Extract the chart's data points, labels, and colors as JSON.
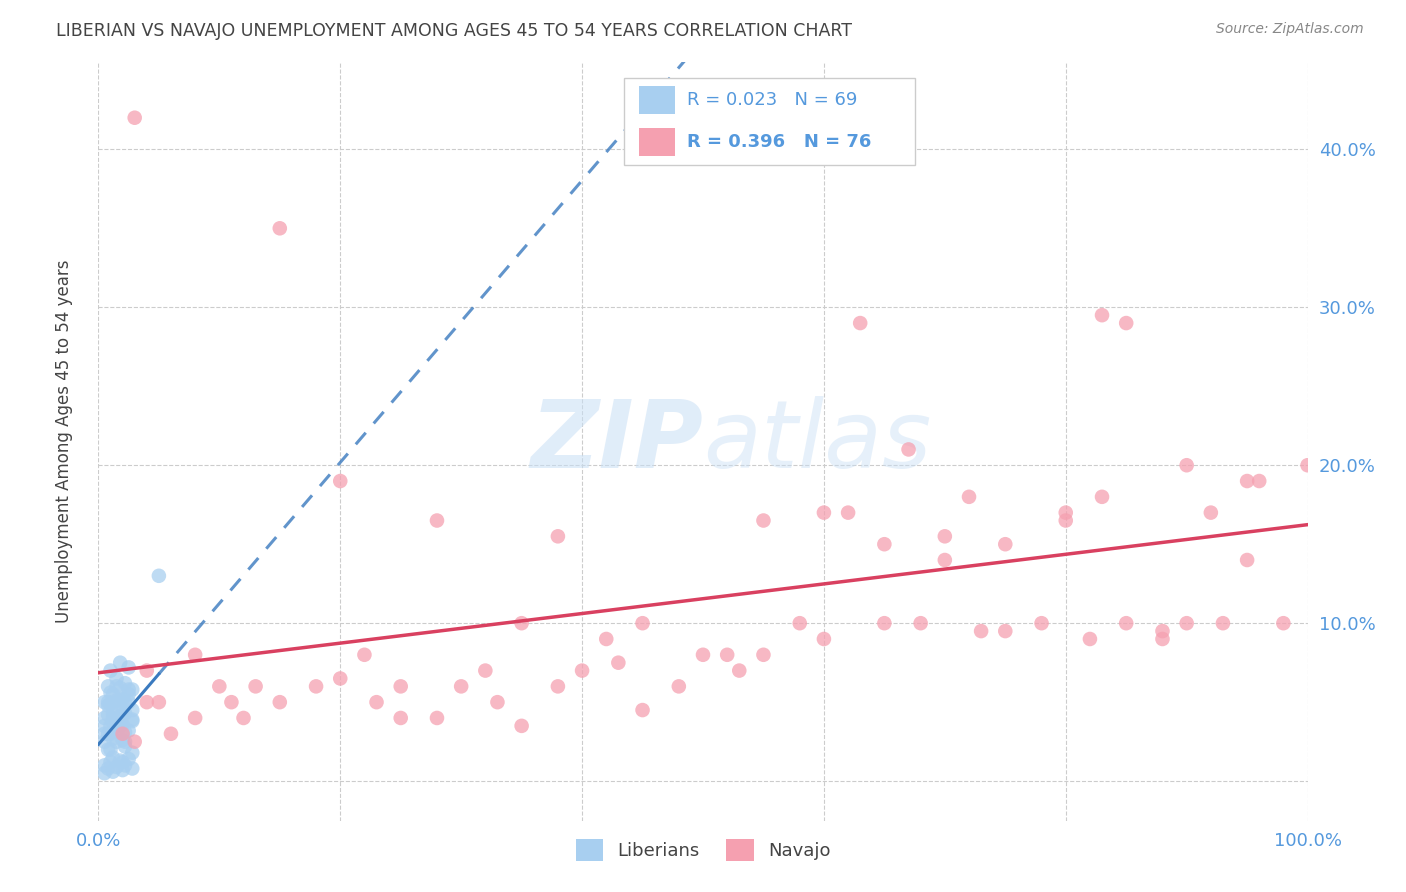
{
  "title": "LIBERIAN VS NAVAJO UNEMPLOYMENT AMONG AGES 45 TO 54 YEARS CORRELATION CHART",
  "source": "Source: ZipAtlas.com",
  "ylabel": "Unemployment Among Ages 45 to 54 years",
  "liberian_R": 0.023,
  "liberian_N": 69,
  "navajo_R": 0.396,
  "navajo_N": 76,
  "liberian_color": "#a8cff0",
  "navajo_color": "#f5a0b0",
  "trend_liberian_color": "#3a7abf",
  "trend_navajo_color": "#d94060",
  "background_color": "#ffffff",
  "grid_color": "#cccccc",
  "title_color": "#444444",
  "axis_label_color": "#5599dd",
  "xlim": [
    0.0,
    1.0
  ],
  "ylim": [
    -0.025,
    0.455
  ],
  "xticks": [
    0.0,
    0.2,
    0.4,
    0.6,
    0.8,
    1.0
  ],
  "xticklabels": [
    "0.0%",
    "",
    "",
    "",
    "",
    "100.0%"
  ],
  "yticks": [
    0.0,
    0.1,
    0.2,
    0.3,
    0.4
  ],
  "yticklabels_right": [
    "",
    "10.0%",
    "20.0%",
    "30.0%",
    "40.0%"
  ],
  "lib_x": [
    0.005,
    0.008,
    0.01,
    0.012,
    0.015,
    0.018,
    0.02,
    0.022,
    0.025,
    0.028,
    0.005,
    0.008,
    0.01,
    0.012,
    0.015,
    0.018,
    0.02,
    0.022,
    0.025,
    0.028,
    0.005,
    0.008,
    0.01,
    0.012,
    0.015,
    0.018,
    0.02,
    0.022,
    0.025,
    0.028,
    0.005,
    0.008,
    0.01,
    0.012,
    0.015,
    0.018,
    0.02,
    0.022,
    0.025,
    0.028,
    0.005,
    0.008,
    0.01,
    0.012,
    0.015,
    0.018,
    0.02,
    0.022,
    0.025,
    0.028,
    0.005,
    0.008,
    0.01,
    0.012,
    0.015,
    0.018,
    0.02,
    0.022,
    0.025,
    0.028,
    0.005,
    0.008,
    0.01,
    0.012,
    0.015,
    0.018,
    0.02,
    0.022,
    0.05
  ],
  "lib_y": [
    0.03,
    0.05,
    0.02,
    0.04,
    0.06,
    0.035,
    0.045,
    0.025,
    0.055,
    0.038,
    0.01,
    0.02,
    0.03,
    0.015,
    0.025,
    0.035,
    0.012,
    0.022,
    0.032,
    0.018,
    0.05,
    0.06,
    0.07,
    0.055,
    0.065,
    0.075,
    0.052,
    0.062,
    0.072,
    0.058,
    0.04,
    0.048,
    0.056,
    0.043,
    0.051,
    0.059,
    0.042,
    0.05,
    0.058,
    0.045,
    0.005,
    0.008,
    0.012,
    0.006,
    0.009,
    0.013,
    0.007,
    0.01,
    0.014,
    0.008,
    0.035,
    0.042,
    0.049,
    0.037,
    0.044,
    0.051,
    0.036,
    0.043,
    0.05,
    0.039,
    0.025,
    0.03,
    0.035,
    0.027,
    0.032,
    0.037,
    0.026,
    0.031,
    0.13
  ],
  "nav_x": [
    0.03,
    0.05,
    0.08,
    0.1,
    0.12,
    0.15,
    0.18,
    0.2,
    0.22,
    0.25,
    0.28,
    0.3,
    0.32,
    0.35,
    0.38,
    0.4,
    0.42,
    0.45,
    0.48,
    0.5,
    0.52,
    0.55,
    0.58,
    0.6,
    0.62,
    0.65,
    0.68,
    0.7,
    0.72,
    0.75,
    0.78,
    0.8,
    0.82,
    0.85,
    0.88,
    0.9,
    0.92,
    0.95,
    0.98,
    1.0,
    0.03,
    0.08,
    0.15,
    0.25,
    0.35,
    0.45,
    0.55,
    0.65,
    0.75,
    0.85,
    0.95,
    0.06,
    0.13,
    0.23,
    0.33,
    0.43,
    0.53,
    0.63,
    0.73,
    0.83,
    0.93,
    0.04,
    0.11,
    0.2,
    0.7,
    0.8,
    0.88,
    0.96,
    0.28,
    0.02,
    0.38,
    0.6,
    0.83,
    0.9,
    0.04,
    0.67
  ],
  "nav_y": [
    0.42,
    0.05,
    0.08,
    0.06,
    0.04,
    0.35,
    0.06,
    0.19,
    0.08,
    0.06,
    0.04,
    0.06,
    0.07,
    0.1,
    0.06,
    0.07,
    0.09,
    0.1,
    0.06,
    0.08,
    0.08,
    0.08,
    0.1,
    0.09,
    0.17,
    0.1,
    0.1,
    0.14,
    0.18,
    0.15,
    0.1,
    0.17,
    0.09,
    0.29,
    0.09,
    0.1,
    0.17,
    0.14,
    0.1,
    0.2,
    0.025,
    0.04,
    0.05,
    0.04,
    0.035,
    0.045,
    0.165,
    0.15,
    0.095,
    0.1,
    0.19,
    0.03,
    0.06,
    0.05,
    0.05,
    0.075,
    0.07,
    0.29,
    0.095,
    0.18,
    0.1,
    0.07,
    0.05,
    0.065,
    0.155,
    0.165,
    0.095,
    0.19,
    0.165,
    0.03,
    0.155,
    0.17,
    0.295,
    0.2,
    0.05,
    0.21
  ]
}
